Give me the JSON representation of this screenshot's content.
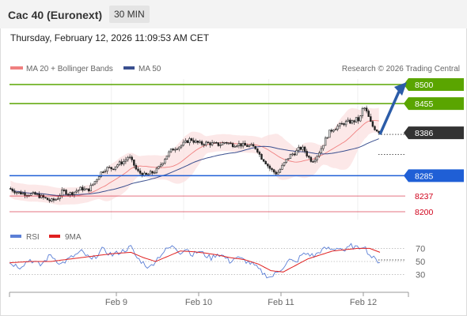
{
  "header": {
    "title": "Cac 40 (Euronext)",
    "timeframe": "30 MIN",
    "date": "Thursday, February 12, 2026 11:09:53 AM CET"
  },
  "legend": {
    "ma20": "MA 20 + Bollinger Bands",
    "ma50": "MA 50",
    "credit": "Research © 2026 Trading Central",
    "rsi": "RSI",
    "rsi_ma": "9MA"
  },
  "colors": {
    "green_level": "#5aa500",
    "blue_level": "#1f5fd6",
    "red_level": "#d0021b",
    "price_tag": "#333333",
    "ma20": "#f08080",
    "ma50": "#3a4f8f",
    "arrow": "#2b5ca8",
    "rsi": "#5b7fd6",
    "rsi_ma": "#e02020"
  },
  "levels": [
    {
      "value": 8500,
      "label": "8500",
      "kind": "resistance",
      "color": "green"
    },
    {
      "value": 8455,
      "label": "8455",
      "kind": "resistance",
      "color": "green"
    },
    {
      "value": 8386,
      "label": "8386",
      "kind": "current",
      "color": "dark"
    },
    {
      "value": 8285,
      "label": "8285",
      "kind": "pivot",
      "color": "blue"
    },
    {
      "value": 8237,
      "label": "8237",
      "kind": "support",
      "color": "red"
    },
    {
      "value": 8200,
      "label": "8200",
      "kind": "support",
      "color": "red"
    }
  ],
  "chart_data": [
    {
      "type": "candlestick",
      "ylim": [
        8185,
        8530
      ],
      "x_labels": [
        "Feb 9",
        "Feb 10",
        "Feb 11",
        "Feb 12"
      ],
      "anchors": [
        [
          0,
          8255
        ],
        [
          8,
          8245
        ],
        [
          18,
          8242
        ],
        [
          26,
          8240
        ],
        [
          34,
          8232
        ],
        [
          40,
          8225
        ],
        [
          46,
          8230
        ],
        [
          52,
          8250
        ],
        [
          58,
          8242
        ],
        [
          64,
          8248
        ],
        [
          70,
          8255
        ],
        [
          76,
          8250
        ],
        [
          80,
          8262
        ],
        [
          84,
          8275
        ],
        [
          88,
          8290
        ],
        [
          92,
          8300
        ],
        [
          96,
          8303
        ],
        [
          100,
          8302
        ],
        [
          104,
          8310
        ],
        [
          108,
          8315
        ],
        [
          112,
          8320
        ],
        [
          116,
          8332
        ],
        [
          118,
          8320
        ],
        [
          120,
          8315
        ],
        [
          122,
          8305
        ],
        [
          124,
          8295
        ],
        [
          128,
          8290
        ],
        [
          132,
          8285
        ],
        [
          136,
          8290
        ],
        [
          140,
          8293
        ],
        [
          144,
          8300
        ],
        [
          148,
          8315
        ],
        [
          152,
          8330
        ],
        [
          156,
          8342
        ],
        [
          160,
          8350
        ],
        [
          166,
          8355
        ],
        [
          172,
          8365
        ],
        [
          176,
          8372
        ],
        [
          180,
          8365
        ],
        [
          186,
          8360
        ],
        [
          192,
          8362
        ],
        [
          198,
          8360
        ],
        [
          204,
          8358
        ],
        [
          210,
          8365
        ],
        [
          216,
          8358
        ],
        [
          222,
          8360
        ],
        [
          228,
          8356
        ],
        [
          234,
          8355
        ],
        [
          240,
          8350
        ],
        [
          244,
          8330
        ],
        [
          248,
          8320
        ],
        [
          252,
          8305
        ],
        [
          256,
          8295
        ],
        [
          260,
          8290
        ],
        [
          263,
          8300
        ],
        [
          266,
          8310
        ],
        [
          270,
          8325
        ],
        [
          274,
          8335
        ],
        [
          278,
          8340
        ],
        [
          282,
          8350
        ],
        [
          286,
          8348
        ],
        [
          290,
          8330
        ],
        [
          294,
          8320
        ],
        [
          298,
          8330
        ],
        [
          302,
          8345
        ],
        [
          306,
          8365
        ],
        [
          310,
          8385
        ],
        [
          314,
          8395
        ],
        [
          318,
          8400
        ],
        [
          322,
          8405
        ],
        [
          326,
          8410
        ],
        [
          330,
          8412
        ],
        [
          334,
          8412
        ],
        [
          338,
          8420
        ],
        [
          340,
          8412
        ],
        [
          342,
          8435
        ],
        [
          344,
          8448
        ],
        [
          346,
          8440
        ],
        [
          348,
          8430
        ],
        [
          350,
          8415
        ],
        [
          352,
          8405
        ],
        [
          354,
          8398
        ],
        [
          356,
          8395
        ],
        [
          358,
          8390
        ],
        [
          360,
          8386
        ]
      ],
      "n_candles": 180,
      "last_close": 8386
    },
    {
      "type": "line",
      "name": "RSI",
      "ylim": [
        15,
        85
      ],
      "y_ticks": [
        70,
        50,
        30
      ],
      "rsi": [
        [
          0,
          48
        ],
        [
          10,
          42
        ],
        [
          20,
          53
        ],
        [
          30,
          44
        ],
        [
          40,
          60
        ],
        [
          50,
          46
        ],
        [
          60,
          56
        ],
        [
          70,
          65
        ],
        [
          80,
          52
        ],
        [
          90,
          68
        ],
        [
          100,
          60
        ],
        [
          110,
          66
        ],
        [
          118,
          72
        ],
        [
          124,
          55
        ],
        [
          130,
          48
        ],
        [
          136,
          40
        ],
        [
          142,
          52
        ],
        [
          148,
          62
        ],
        [
          154,
          70
        ],
        [
          160,
          73
        ],
        [
          166,
          64
        ],
        [
          172,
          70
        ],
        [
          178,
          60
        ],
        [
          184,
          66
        ],
        [
          190,
          60
        ],
        [
          196,
          55
        ],
        [
          202,
          62
        ],
        [
          208,
          58
        ],
        [
          214,
          50
        ],
        [
          220,
          56
        ],
        [
          228,
          52
        ],
        [
          236,
          46
        ],
        [
          242,
          38
        ],
        [
          248,
          30
        ],
        [
          254,
          26
        ],
        [
          260,
          33
        ],
        [
          266,
          42
        ],
        [
          272,
          52
        ],
        [
          278,
          48
        ],
        [
          284,
          60
        ],
        [
          290,
          62
        ],
        [
          296,
          58
        ],
        [
          302,
          66
        ],
        [
          308,
          70
        ],
        [
          314,
          68
        ],
        [
          320,
          72
        ],
        [
          326,
          66
        ],
        [
          332,
          74
        ],
        [
          338,
          70
        ],
        [
          344,
          75
        ],
        [
          350,
          60
        ],
        [
          356,
          52
        ],
        [
          360,
          50
        ]
      ],
      "rsi_ma": [
        [
          0,
          48
        ],
        [
          20,
          50
        ],
        [
          40,
          50
        ],
        [
          60,
          54
        ],
        [
          80,
          58
        ],
        [
          100,
          62
        ],
        [
          118,
          64
        ],
        [
          130,
          56
        ],
        [
          142,
          50
        ],
        [
          154,
          58
        ],
        [
          166,
          66
        ],
        [
          178,
          65
        ],
        [
          190,
          63
        ],
        [
          202,
          60
        ],
        [
          214,
          56
        ],
        [
          228,
          53
        ],
        [
          242,
          46
        ],
        [
          254,
          36
        ],
        [
          266,
          34
        ],
        [
          278,
          44
        ],
        [
          290,
          54
        ],
        [
          302,
          60
        ],
        [
          314,
          66
        ],
        [
          326,
          68
        ],
        [
          338,
          70
        ],
        [
          350,
          70
        ],
        [
          360,
          64
        ]
      ]
    }
  ]
}
